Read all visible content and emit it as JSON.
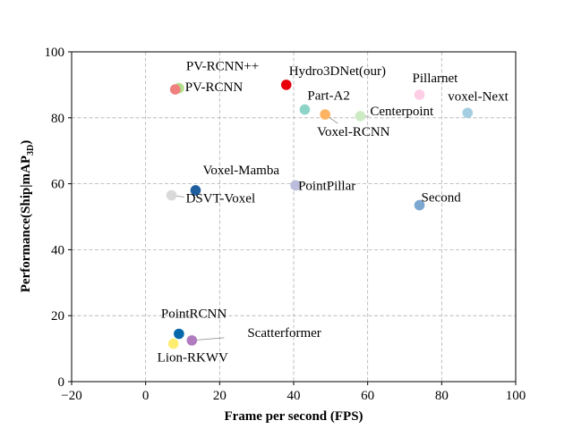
{
  "chart_data": {
    "type": "scatter",
    "title": "",
    "xlabel": "Frame per second (FPS)",
    "ylabel_main": "Performance(Ship|mAP",
    "ylabel_sub": "3D",
    "ylabel_end": ")",
    "xlim": [
      -20,
      100
    ],
    "ylim": [
      0,
      100
    ],
    "xticks": [
      -20,
      0,
      20,
      40,
      60,
      80,
      100
    ],
    "yticks": [
      0,
      20,
      40,
      60,
      80,
      100
    ],
    "xtick_labels": [
      "−20",
      "0",
      "20",
      "40",
      "60",
      "80",
      "100"
    ],
    "ytick_labels": [
      "0",
      "20",
      "40",
      "60",
      "80",
      "100"
    ],
    "grid": true,
    "grid_style": "dashed",
    "legend": "none",
    "points": [
      {
        "name": "PV-RCNN++",
        "x": 9.0,
        "y": 89.0,
        "color": "#b2df8a"
      },
      {
        "name": "PV-RCNN",
        "x": 8.0,
        "y": 88.6,
        "color": "#f08080"
      },
      {
        "name": "Hydro3DNet(our)",
        "x": 38.0,
        "y": 90.0,
        "color": "#e8000b"
      },
      {
        "name": "Part-A2",
        "x": 43.0,
        "y": 82.5,
        "color": "#8dd3c7"
      },
      {
        "name": "Voxel-RCNN",
        "x": 48.5,
        "y": 81.0,
        "color": "#fdb462"
      },
      {
        "name": "Centerpoint",
        "x": 58.0,
        "y": 80.5,
        "color": "#ccebc5"
      },
      {
        "name": "Pillarnet",
        "x": 74.0,
        "y": 87.0,
        "color": "#fccde5"
      },
      {
        "name": "voxel-Next",
        "x": 87.0,
        "y": 81.5,
        "color": "#a6cee3"
      },
      {
        "name": "Voxel-Mamba",
        "x": 13.5,
        "y": 58.0,
        "color": "#1f5f9f"
      },
      {
        "name": "DSVT-Voxel",
        "x": 7.0,
        "y": 56.5,
        "color": "#d9d9d9"
      },
      {
        "name": "PointPillar",
        "x": 40.5,
        "y": 59.5,
        "color": "#bcbddc"
      },
      {
        "name": "Second",
        "x": 74.0,
        "y": 53.5,
        "color": "#7ba7d1"
      },
      {
        "name": "PointRCNN",
        "x": 9.0,
        "y": 14.5,
        "color": "#0868ac"
      },
      {
        "name": "Scatterformer",
        "x": 12.5,
        "y": 12.5,
        "color": "#b07cbf"
      },
      {
        "name": "Lion-RKWV",
        "x": 7.5,
        "y": 11.5,
        "color": "#ffed6f"
      }
    ]
  }
}
